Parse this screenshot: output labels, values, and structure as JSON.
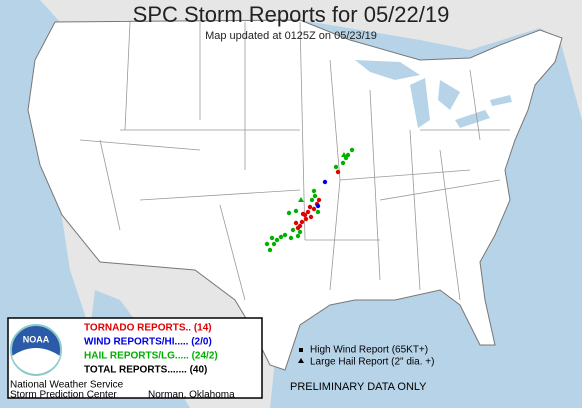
{
  "header": {
    "title": "SPC Storm Reports for 05/22/19",
    "subtitle": "Map updated at 0125Z on 05/23/19"
  },
  "legend": {
    "logo": "NOAA",
    "tornado": "TORNADO REPORTS.. (14)",
    "wind": "WIND REPORTS/HI..... (2/0)",
    "hail": "HAIL REPORTS/LG..... (24/2)",
    "total": "TOTAL REPORTS....... (40)"
  },
  "key": {
    "high_wind": "High Wind Report (65KT+)",
    "large_hail": "Large Hail Report (2\" dia. +)"
  },
  "footer": {
    "agency": "National Weather Service",
    "center": "Storm Prediction Center",
    "location": "Norman, Oklahoma",
    "notice": "PRELIMINARY DATA ONLY"
  }
}
